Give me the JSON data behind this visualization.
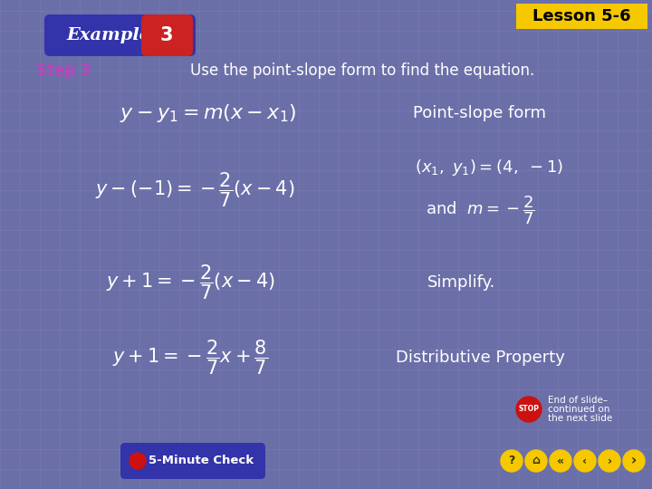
{
  "background_color": "#6B6FA8",
  "grid_color": "#8888BB",
  "title_box_color": "#F5C800",
  "title_text": "Lesson 5-6",
  "title_text_color": "#000000",
  "example_bg_color": "#3333AA",
  "example_text_color": "#FFFFFF",
  "example_number_bg": "#CC2222",
  "step_label_color": "#BB44BB",
  "step_text_color": "#FFFFFF",
  "step_label": "Step 3",
  "step_description": "Use the point-slope form to find the equation.",
  "eq1_right": "Point-slope form",
  "eq3_right": "Simplify.",
  "eq4_right": "Distributive Property",
  "bottom_bar_color": "#3333AA",
  "nav_color": "#F5C800",
  "stop_color": "#CC1111"
}
